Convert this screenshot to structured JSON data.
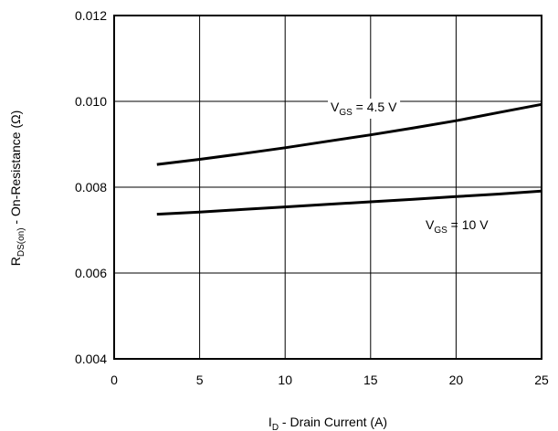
{
  "chart_data": {
    "type": "line",
    "title": "",
    "xlabel": {
      "main": "I",
      "sub": "D",
      "rest": " - Drain Current (A)"
    },
    "ylabel": {
      "main": "R",
      "sub": "DS(on)",
      "rest": " - On-Resistance (Ω)"
    },
    "xlim": [
      0,
      25
    ],
    "ylim": [
      0.004,
      0.012
    ],
    "xticks": [
      0,
      5,
      10,
      15,
      20,
      25
    ],
    "xtick_labels": [
      "0",
      "5",
      "10",
      "15",
      "20",
      "25"
    ],
    "yticks": [
      0.004,
      0.006,
      0.008,
      0.01,
      0.012
    ],
    "ytick_labels": [
      "0.004",
      "0.006",
      "0.008",
      "0.010",
      "0.012"
    ],
    "grid": true,
    "series": [
      {
        "label": {
          "main": "V",
          "sub": "GS",
          "rest": " = 4.5 V"
        },
        "x": [
          2.5,
          5,
          7.5,
          10,
          12.5,
          15,
          17.5,
          20,
          22.5,
          25
        ],
        "y": [
          0.00853,
          0.00865,
          0.00878,
          0.00892,
          0.00907,
          0.00922,
          0.00938,
          0.00955,
          0.00974,
          0.00993
        ]
      },
      {
        "label": {
          "main": "V",
          "sub": "GS",
          "rest": " = 10 V"
        },
        "x": [
          2.5,
          5,
          7.5,
          10,
          12.5,
          15,
          17.5,
          20,
          22.5,
          25
        ],
        "y": [
          0.00737,
          0.00742,
          0.00748,
          0.00754,
          0.0076,
          0.00766,
          0.00772,
          0.00778,
          0.00784,
          0.00791
        ]
      }
    ]
  }
}
